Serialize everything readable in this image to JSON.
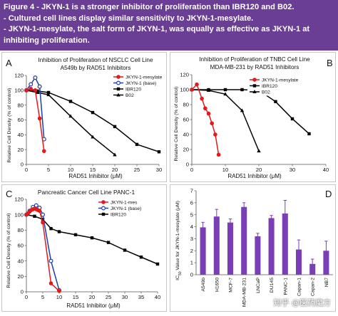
{
  "header": {
    "lines": [
      "Figure 4 - JKYN-1 is a stronger inhibitor of proliferation than IBR120 and B02.",
      "- Cultured cell lines display similar sensitivity to JKYN-1-mesylate.",
      "- JKYN-1-mesylate, the salt form of JKYN-1, was equally as effective as JKYN-1 at",
      "inhibiting proliferation."
    ]
  },
  "watermark": "知乎 @医药魔方",
  "colors": {
    "header_bg": "#6a3e95",
    "red": "#e31a1c",
    "blue": "#1f3fa8",
    "black": "#000000",
    "purple": "#7b3fb5"
  },
  "chart_data": [
    {
      "panel": "A",
      "type": "line",
      "title": "Inhibition of Proliferation of NSCLC Cell Line",
      "subtitle": "A549b by RAD51 Inhibitors",
      "xlabel": "RAD51 Inhibitor (μM)",
      "ylabel": "Relative Cell Density (% of control)",
      "xlim": [
        0,
        30
      ],
      "ylim": [
        0,
        120
      ],
      "xticks": [
        0,
        5,
        10,
        15,
        20,
        25,
        30
      ],
      "yticks": [
        0,
        20,
        40,
        60,
        80,
        100,
        120
      ],
      "legend_position": "top-right",
      "series": [
        {
          "name": "JKYN-1-mesylate",
          "color": "#e31a1c",
          "marker": "circle-filled",
          "x": [
            0,
            1,
            2,
            3,
            4
          ],
          "y": [
            100,
            102,
            100,
            62,
            18
          ]
        },
        {
          "name": "JKYN-1 (base)",
          "color": "#1f3fa8",
          "marker": "circle-open",
          "x": [
            0,
            1,
            2,
            3,
            4
          ],
          "y": [
            100,
            108,
            117,
            105,
            34
          ]
        },
        {
          "name": "IBR120",
          "color": "#000000",
          "marker": "square",
          "x": [
            0,
            2.5,
            5,
            10,
            15,
            20,
            25,
            30
          ],
          "y": [
            100,
            99,
            97,
            85,
            70,
            51,
            27,
            17
          ]
        },
        {
          "name": "B02",
          "color": "#000000",
          "marker": "triangle",
          "x": [
            0,
            2.5,
            5,
            10,
            15,
            20
          ],
          "y": [
            100,
            97,
            94,
            65,
            37,
            13
          ]
        }
      ]
    },
    {
      "panel": "B",
      "type": "line",
      "title": "Inhibition of Proliferation of TNBC Cell Line",
      "subtitle": "MDA-MB-231 by RAD51 Inhibitors",
      "xlabel": "RAD51 Inhibitor (μM)",
      "ylabel": "Relative Cell Density (% of control)",
      "xlim": [
        0,
        40
      ],
      "ylim": [
        0,
        120
      ],
      "xticks": [
        0,
        10,
        20,
        30,
        40
      ],
      "yticks": [
        0,
        20,
        40,
        60,
        80,
        100,
        120
      ],
      "legend_position": "top-right",
      "series": [
        {
          "name": "JKYN-1-mesylate",
          "color": "#e31a1c",
          "marker": "circle-filled",
          "x": [
            0,
            1.5,
            3,
            4,
            5,
            6,
            7,
            8
          ],
          "y": [
            100,
            107,
            88,
            75,
            68,
            55,
            40,
            13
          ]
        },
        {
          "name": "IBR120",
          "color": "#000000",
          "marker": "square",
          "x": [
            0,
            5,
            10,
            15,
            20,
            25,
            30,
            35
          ],
          "y": [
            100,
            100,
            100,
            100,
            99,
            84,
            61,
            41
          ]
        },
        {
          "name": "B02",
          "color": "#000000",
          "marker": "triangle",
          "x": [
            0,
            5,
            10,
            15,
            20
          ],
          "y": [
            100,
            99,
            94,
            72,
            18
          ]
        }
      ]
    },
    {
      "panel": "C",
      "type": "line",
      "title": "Pancreatic Cancer Cell Line PANC-1",
      "xlabel": "RAD51 Inhibitor (μM)",
      "ylabel": "Relative Cell Density (% of control)",
      "xlim": [
        0,
        40
      ],
      "ylim": [
        0,
        120
      ],
      "xticks": [
        0,
        5,
        10,
        15,
        20,
        25,
        30,
        35,
        40
      ],
      "yticks": [
        0,
        20,
        40,
        60,
        80,
        100,
        120
      ],
      "legend_position": "top-right",
      "series": [
        {
          "name": "JKYN-1-mes",
          "color": "#e31a1c",
          "marker": "circle-filled",
          "x": [
            0,
            0.5,
            1,
            1.5,
            2,
            2.5,
            3,
            3.5,
            4,
            5,
            7.5,
            10
          ],
          "y": [
            100,
            102,
            104,
            106,
            107,
            108,
            107,
            106,
            105,
            90,
            11,
            1
          ]
        },
        {
          "name": "JKYN-1 (base)",
          "color": "#1f3fa8",
          "marker": "circle-open",
          "x": [
            0,
            1,
            2,
            3,
            4,
            5,
            7.5,
            10
          ],
          "y": [
            100,
            105,
            110,
            112,
            109,
            100,
            40,
            2
          ]
        },
        {
          "name": "IBR120",
          "color": "#000000",
          "marker": "square",
          "x": [
            0,
            2.5,
            5,
            7.5,
            10,
            15,
            20,
            25,
            30,
            35,
            40
          ],
          "y": [
            100,
            98,
            94,
            82,
            78,
            74,
            70,
            64,
            54,
            45,
            36
          ]
        }
      ]
    },
    {
      "panel": "D",
      "type": "bar",
      "ylabel": "IC50 Value for JKYN-1-mesylate (μM)",
      "ylim": [
        0,
        7
      ],
      "yticks": [
        0,
        1,
        2,
        3,
        4,
        5,
        6,
        7
      ],
      "color": "#7b3fb5",
      "categories": [
        "A549b",
        "H1650",
        "MCF-7",
        "MDA-MB-231",
        "LNCaP",
        "DU145",
        "PANC-1",
        "Capan-1",
        "Capan-2",
        "NB7"
      ],
      "values": [
        3.95,
        4.85,
        4.35,
        5.65,
        3.2,
        4.72,
        5.1,
        2.1,
        0.9,
        2.0
      ],
      "errors": [
        0.42,
        0.6,
        0.3,
        0.35,
        0.25,
        0.22,
        1.1,
        0.8,
        0.4,
        0.8
      ]
    }
  ]
}
